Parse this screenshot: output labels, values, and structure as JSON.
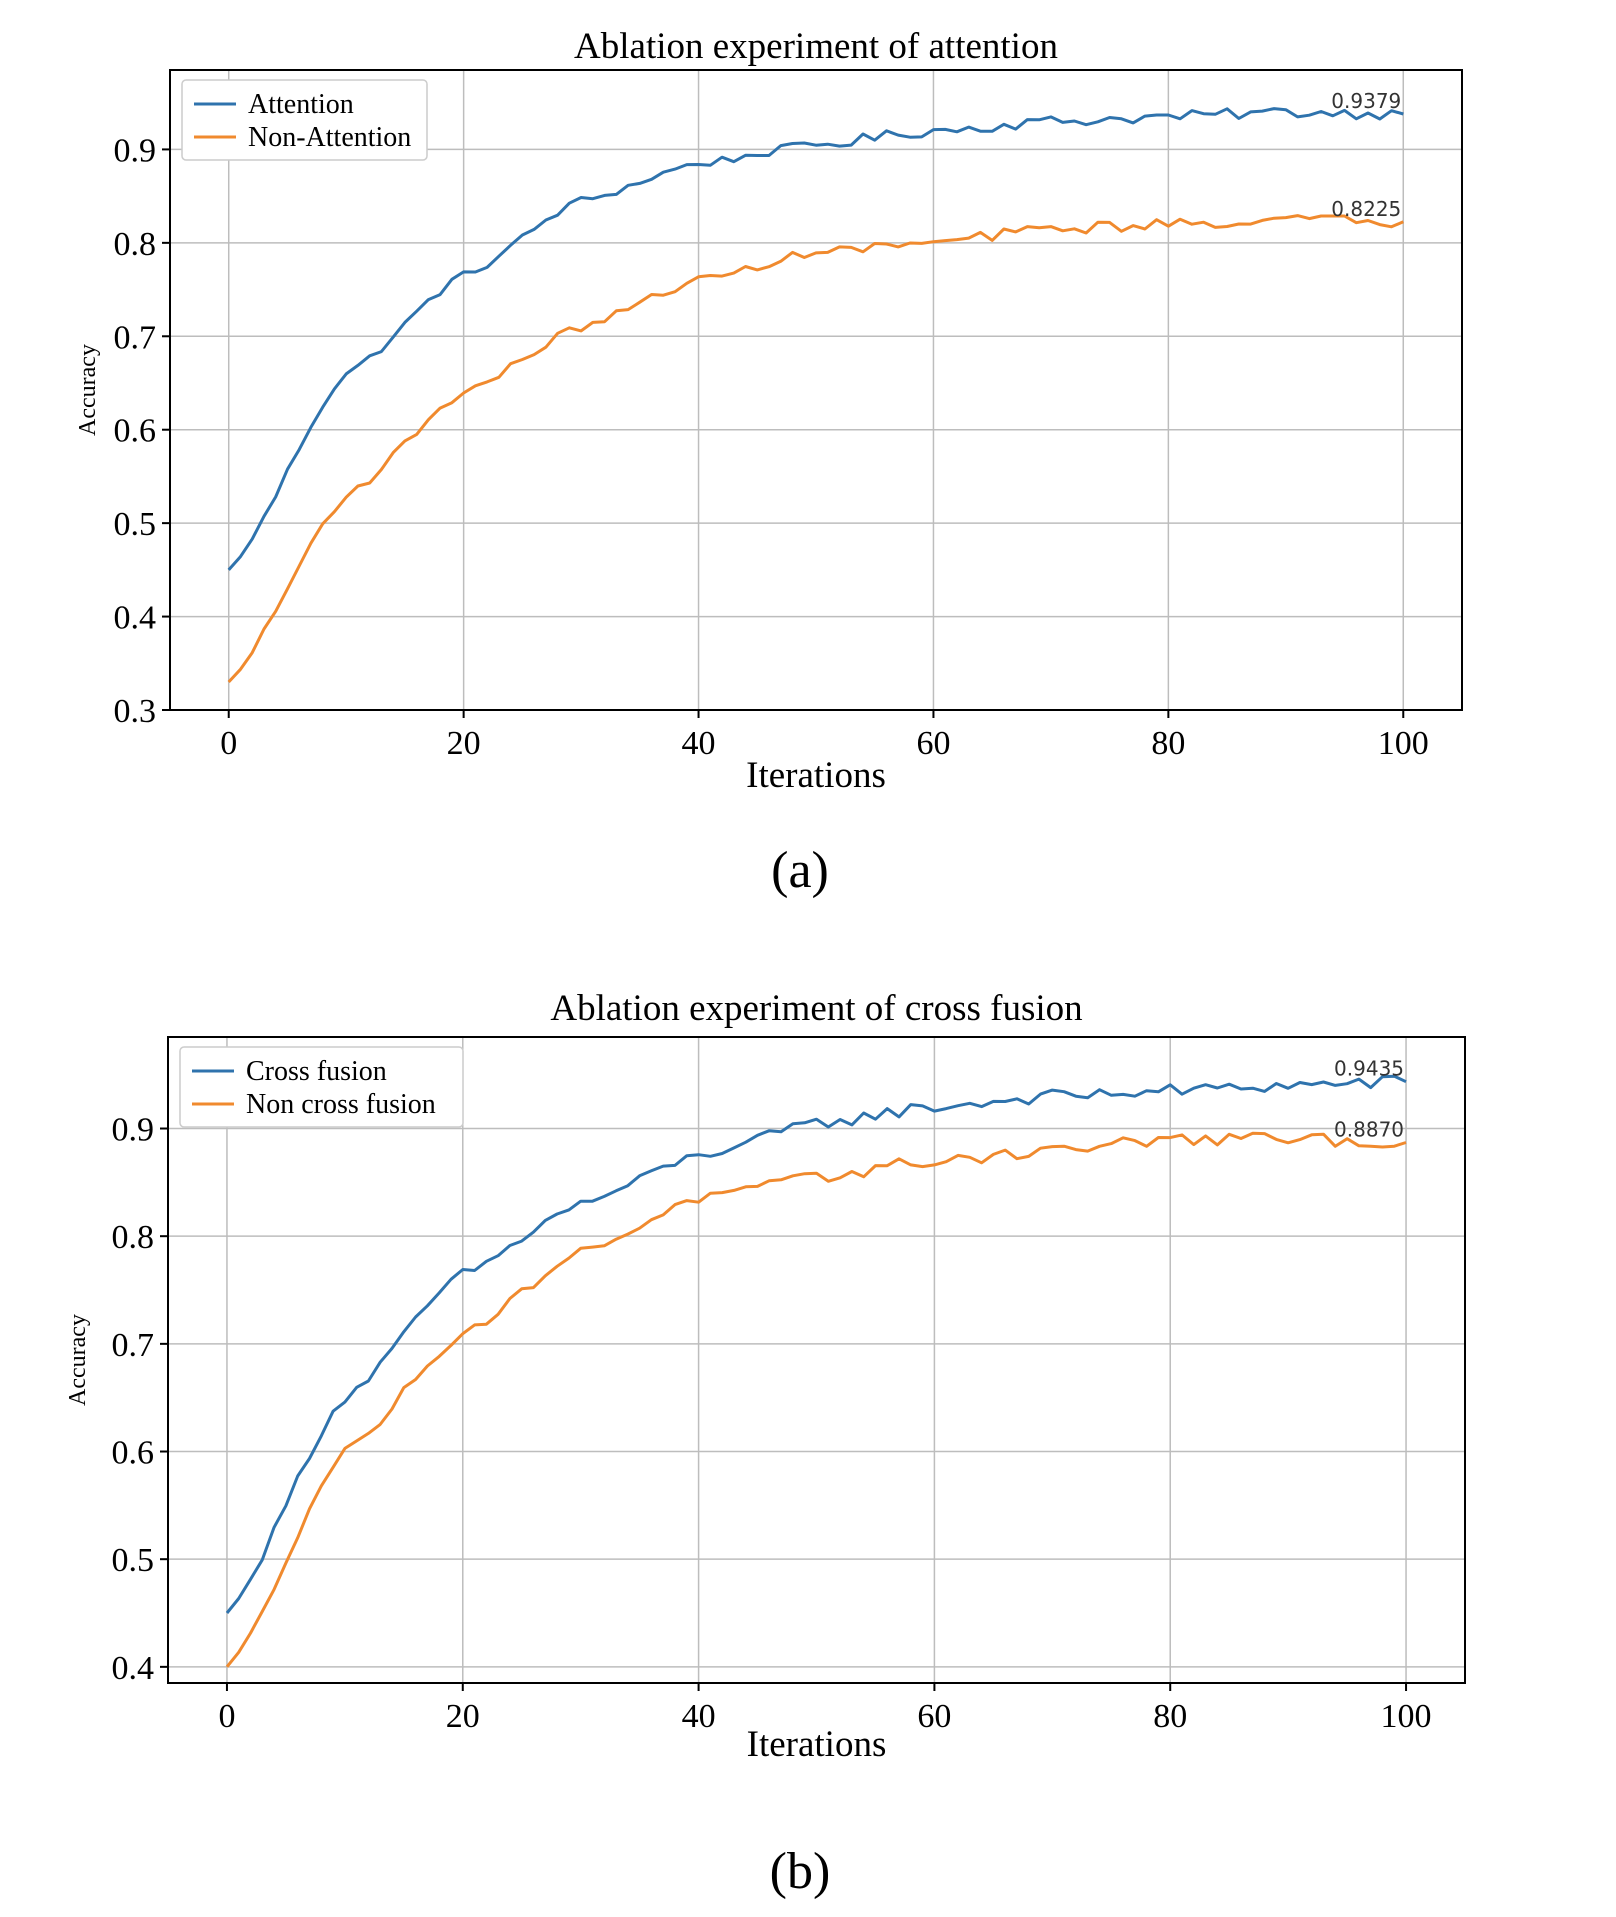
{
  "chart_data": [
    {
      "type": "line",
      "title": "Ablation experiment of attention",
      "xlabel": "Iterations",
      "ylabel": "Accuracy",
      "xlim": [
        -5,
        105
      ],
      "ylim": [
        0.3,
        0.985
      ],
      "xticks": [
        0,
        20,
        40,
        60,
        80,
        100
      ],
      "yticks": [
        0.3,
        0.4,
        0.5,
        0.6,
        0.7,
        0.8,
        0.9
      ],
      "ytick_labels": [
        "0.3",
        "0.4",
        "0.5",
        "0.6",
        "0.7",
        "0.8",
        "0.9"
      ],
      "grid": true,
      "legend_position": "top-left",
      "caption": "(a)",
      "series": [
        {
          "name": "Attention",
          "color": "#2f73ad",
          "start": 0.45,
          "end": 0.9379,
          "asymptote": 0.955,
          "rate": 0.045,
          "anchors": [
            [
              0,
              0.45
            ],
            [
              10,
              0.66
            ],
            [
              20,
              0.765
            ],
            [
              30,
              0.845
            ],
            [
              40,
              0.885
            ],
            [
              50,
              0.905
            ],
            [
              60,
              0.92
            ],
            [
              70,
              0.93
            ],
            [
              80,
              0.935
            ],
            [
              90,
              0.94
            ],
            [
              100,
              0.9379
            ]
          ]
        },
        {
          "name": "Non-Attention",
          "color": "#f08a2e",
          "start": 0.33,
          "end": 0.8225,
          "asymptote": 0.835,
          "rate": 0.05,
          "anchors": [
            [
              0,
              0.33
            ],
            [
              10,
              0.53
            ],
            [
              20,
              0.64
            ],
            [
              30,
              0.71
            ],
            [
              40,
              0.76
            ],
            [
              50,
              0.79
            ],
            [
              60,
              0.8
            ],
            [
              70,
              0.815
            ],
            [
              80,
              0.82
            ],
            [
              90,
              0.825
            ],
            [
              100,
              0.8225
            ]
          ]
        }
      ],
      "annotations": [
        {
          "text": "0.9379",
          "x": 100,
          "y": 0.9379
        },
        {
          "text": "0.8225",
          "x": 100,
          "y": 0.8225
        }
      ]
    },
    {
      "type": "line",
      "title": "Ablation experiment of cross fusion",
      "xlabel": "Iterations",
      "ylabel": "Accuracy",
      "xlim": [
        -5,
        105
      ],
      "ylim": [
        0.385,
        0.985
      ],
      "xticks": [
        0,
        20,
        40,
        60,
        80,
        100
      ],
      "yticks": [
        0.4,
        0.5,
        0.6,
        0.7,
        0.8,
        0.9
      ],
      "ytick_labels": [
        "0.4",
        "0.5",
        "0.6",
        "0.7",
        "0.8",
        "0.9"
      ],
      "grid": true,
      "legend_position": "top-left",
      "caption": "(b)",
      "series": [
        {
          "name": "Cross fusion",
          "color": "#2f73ad",
          "anchors": [
            [
              0,
              0.45
            ],
            [
              10,
              0.65
            ],
            [
              20,
              0.765
            ],
            [
              30,
              0.83
            ],
            [
              40,
              0.875
            ],
            [
              50,
              0.905
            ],
            [
              60,
              0.92
            ],
            [
              70,
              0.93
            ],
            [
              80,
              0.935
            ],
            [
              90,
              0.94
            ],
            [
              100,
              0.9435
            ]
          ]
        },
        {
          "name": "Non cross fusion",
          "color": "#f08a2e",
          "anchors": [
            [
              0,
              0.4
            ],
            [
              10,
              0.6
            ],
            [
              20,
              0.71
            ],
            [
              30,
              0.785
            ],
            [
              40,
              0.835
            ],
            [
              50,
              0.855
            ],
            [
              60,
              0.87
            ],
            [
              70,
              0.88
            ],
            [
              80,
              0.89
            ],
            [
              90,
              0.89
            ],
            [
              100,
              0.887
            ]
          ]
        }
      ],
      "annotations": [
        {
          "text": "0.9435",
          "x": 100,
          "y": 0.9435
        },
        {
          "text": "0.8870",
          "x": 100,
          "y": 0.887
        }
      ]
    }
  ]
}
